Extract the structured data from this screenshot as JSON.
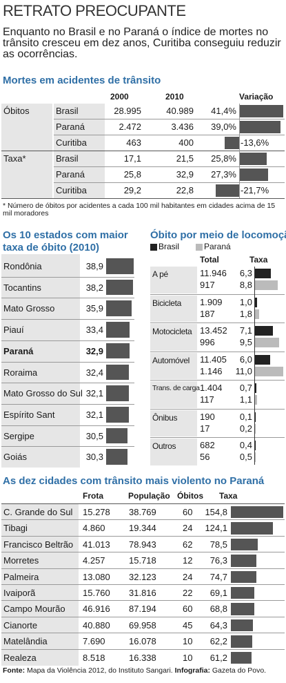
{
  "title": "RETRATO PREOCUPANTE",
  "lead": "Enquanto no Brasil e no Paraná o índice de mortes no trânsito cresceu em dez anos, Curitiba conseguiu reduzir as ocorrências.",
  "footnote": "* Número de óbitos por acidentes a cada 100 mil habitantes em cidades acima de 15 mil moradores",
  "source_label": "Fonte:",
  "source_text": " Mapa da Violência 2012, do Instituto Sangari. ",
  "credit_label": "Infografia:",
  "credit_text": " Gazeta do Povo.",
  "colors": {
    "accent": "#2f6fa6",
    "bar": "#555555",
    "brasil": "#222222",
    "parana": "#bbbbbb"
  },
  "chart_data": [
    {
      "type": "table",
      "title": "Mortes em acidentes de trânsito",
      "columns": [
        "2000",
        "2010",
        "Variação"
      ],
      "groups": [
        {
          "label": "Óbitos",
          "rows": [
            {
              "name": "Brasil",
              "y2000": "28.995",
              "y2010": "40.989",
              "var_label": "41,4%",
              "var": 41.4
            },
            {
              "name": "Paraná",
              "y2000": "2.472",
              "y2010": "3.436",
              "var_label": "39,0%",
              "var": 39.0
            },
            {
              "name": "Curitiba",
              "y2000": "463",
              "y2010": "400",
              "var_label": "-13,6%",
              "var": -13.6
            }
          ]
        },
        {
          "label": "Taxa*",
          "rows": [
            {
              "name": "Brasil",
              "y2000": "17,1",
              "y2010": "21,5",
              "var_label": "25,8%",
              "var": 25.8
            },
            {
              "name": "Paraná",
              "y2000": "25,8",
              "y2010": "32,9",
              "var_label": "27,3%",
              "var": 27.3
            },
            {
              "name": "Curitiba",
              "y2000": "29,2",
              "y2010": "22,8",
              "var_label": "-21,7%",
              "var": -21.7
            }
          ]
        }
      ]
    },
    {
      "type": "bar",
      "title": "Os 10 estados com maior taxa de óbito (2010)",
      "categories": [
        "Rondônia",
        "Tocantins",
        "Mato Grosso",
        "Piauí",
        "Paraná",
        "Roraima",
        "Mato Grosso do Sul",
        "Espírito Sant",
        "Sergipe",
        "Goiás"
      ],
      "value_labels": [
        "38,9",
        "38,2",
        "35,9",
        "33,4",
        "32,9",
        "32,4",
        "32,1",
        "32,1",
        "30,5",
        "30,3"
      ],
      "values": [
        38.9,
        38.2,
        35.9,
        33.4,
        32.9,
        32.4,
        32.1,
        32.1,
        30.5,
        30.3
      ],
      "highlight": "Paraná"
    },
    {
      "type": "bar",
      "title": "Óbito por meio de locomoção",
      "legend": [
        "Brasil",
        "Paraná"
      ],
      "columns": [
        "Total",
        "Taxa"
      ],
      "categories": [
        "A pé",
        "Bicicleta",
        "Motocicleta",
        "Automóvel",
        "Trans. de carga",
        "Ônibus",
        "Outros"
      ],
      "series": [
        {
          "name": "Brasil",
          "totals": [
            "11.946",
            "1.909",
            "13.452",
            "11.405",
            "1.404",
            "190",
            "682"
          ],
          "rate_labels": [
            "6,3",
            "1,0",
            "7,1",
            "6,0",
            "0,7",
            "0,1",
            "0,4"
          ],
          "values": [
            6.3,
            1.0,
            7.1,
            6.0,
            0.7,
            0.1,
            0.4
          ]
        },
        {
          "name": "Paraná",
          "totals": [
            "917",
            "187",
            "996",
            "1.146",
            "117",
            "17",
            "56"
          ],
          "rate_labels": [
            "8,8",
            "1,8",
            "9,5",
            "11,0",
            "1,1",
            "0,2",
            "0,5"
          ],
          "values": [
            8.8,
            1.8,
            9.5,
            11.0,
            1.1,
            0.2,
            0.5
          ]
        }
      ]
    },
    {
      "type": "bar",
      "title": "As dez cidades com trânsito mais violento no Paraná",
      "columns": [
        "Frota",
        "População",
        "Óbitos",
        "Taxa"
      ],
      "rows": [
        {
          "city": "C. Grande do Sul",
          "frota": "15.278",
          "pop": "38.769",
          "obitos": "60",
          "taxa_label": "154,8",
          "taxa": 154.8
        },
        {
          "city": "Tibagi",
          "frota": "4.860",
          "pop": "19.344",
          "obitos": "24",
          "taxa_label": "124,1",
          "taxa": 124.1
        },
        {
          "city": "Francisco Beltrão",
          "frota": "41.013",
          "pop": "78.943",
          "obitos": "62",
          "taxa_label": "78,5",
          "taxa": 78.5
        },
        {
          "city": "Morretes",
          "frota": "4.257",
          "pop": "15.718",
          "obitos": "12",
          "taxa_label": "76,3",
          "taxa": 76.3
        },
        {
          "city": "Palmeira",
          "frota": "13.080",
          "pop": "32.123",
          "obitos": "24",
          "taxa_label": "74,7",
          "taxa": 74.7
        },
        {
          "city": "Ivaiporã",
          "frota": "15.760",
          "pop": "31.816",
          "obitos": "22",
          "taxa_label": "69,1",
          "taxa": 69.1
        },
        {
          "city": "Campo Mourão",
          "frota": "46.916",
          "pop": "87.194",
          "obitos": "60",
          "taxa_label": "68,8",
          "taxa": 68.8
        },
        {
          "city": "Cianorte",
          "frota": "40.880",
          "pop": "69.958",
          "obitos": "45",
          "taxa_label": "64,3",
          "taxa": 64.3
        },
        {
          "city": "Matelândia",
          "frota": "7.690",
          "pop": "16.078",
          "obitos": "10",
          "taxa_label": "62,2",
          "taxa": 62.2
        },
        {
          "city": "Realeza",
          "frota": "8.518",
          "pop": "16.338",
          "obitos": "10",
          "taxa_label": "61,2",
          "taxa": 61.2
        }
      ]
    }
  ]
}
